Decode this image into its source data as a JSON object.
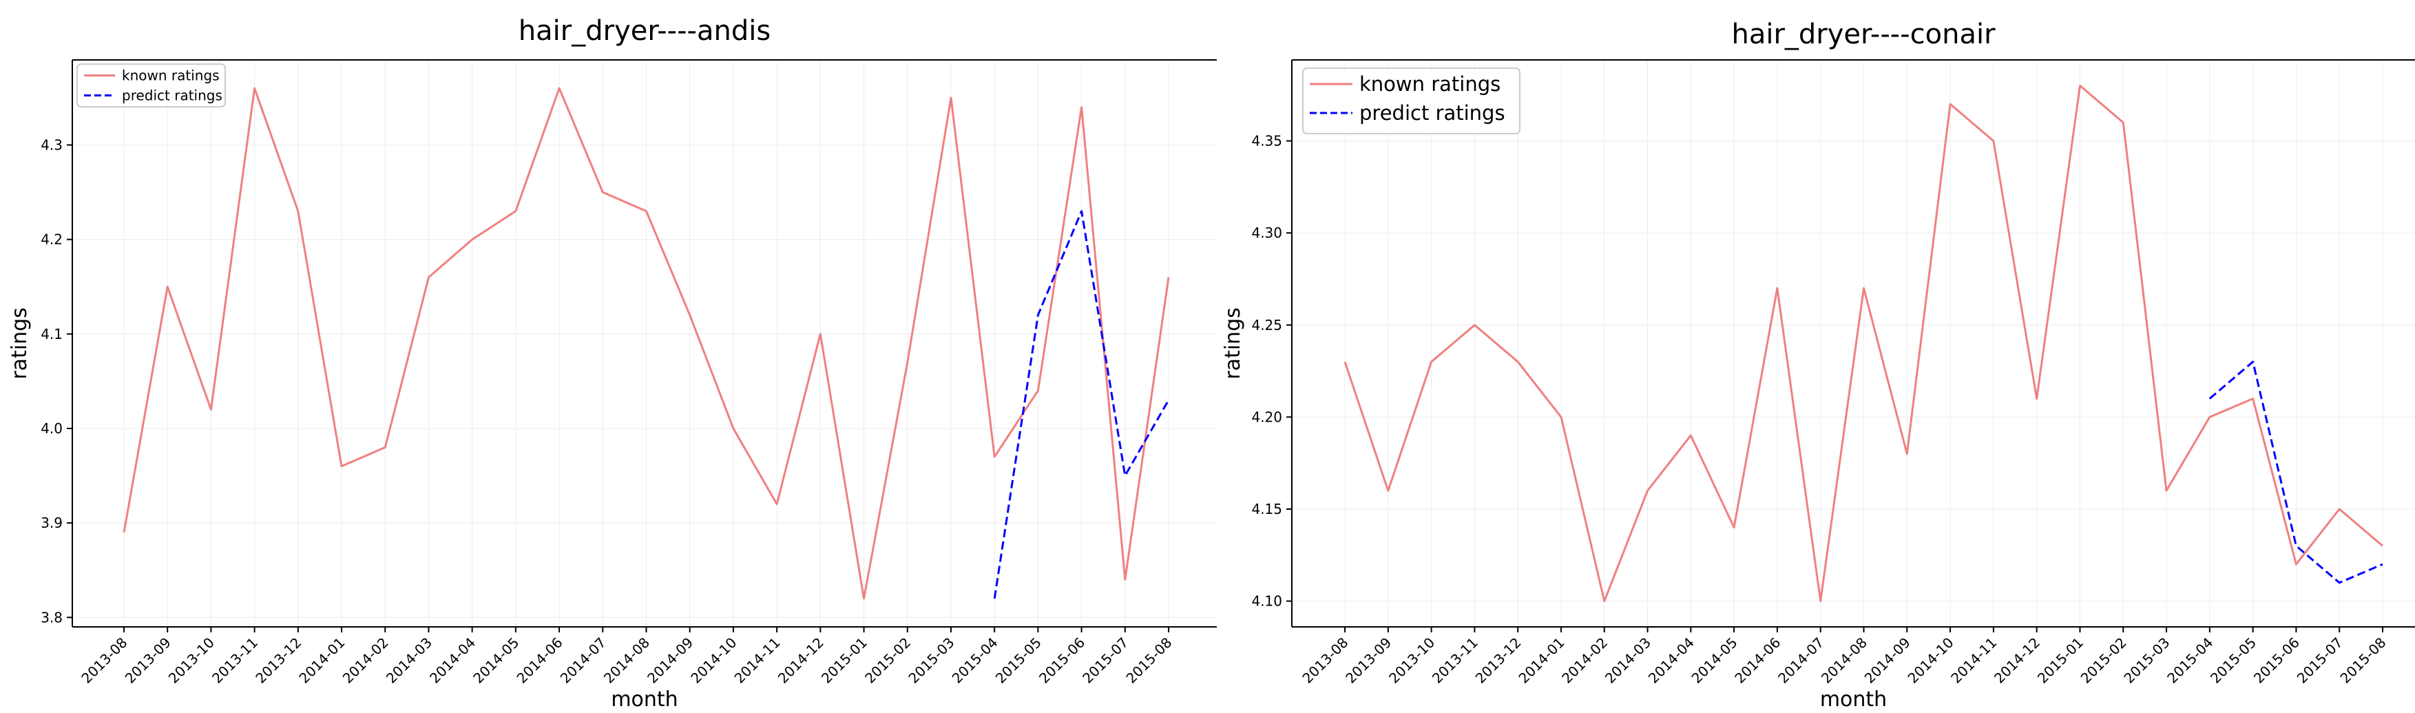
{
  "chart_data": [
    {
      "type": "line",
      "title": "hair_dryer----andis",
      "xlabel": "month",
      "ylabel": "ratings",
      "categories": [
        "2013-08",
        "2013-09",
        "2013-10",
        "2013-11",
        "2013-12",
        "2014-01",
        "2014-02",
        "2014-03",
        "2014-04",
        "2014-05",
        "2014-06",
        "2014-07",
        "2014-08",
        "2014-09",
        "2014-10",
        "2014-11",
        "2014-12",
        "2015-01",
        "2015-02",
        "2015-03",
        "2015-04",
        "2015-05",
        "2015-06",
        "2015-07",
        "2015-08"
      ],
      "ylim": [
        3.79,
        4.39
      ],
      "yticks": [
        3.8,
        3.9,
        4.0,
        4.1,
        4.2,
        4.3
      ],
      "ytick_labels": [
        "3.8",
        "3.9",
        "4.0",
        "4.1",
        "4.2",
        "4.3"
      ],
      "grid": true,
      "legend_position": "upper-left",
      "legend_size": "small",
      "series": [
        {
          "name": "known ratings",
          "color": "#f08080",
          "dash": "solid",
          "values": [
            3.89,
            4.15,
            4.02,
            4.36,
            4.23,
            3.96,
            3.98,
            4.16,
            4.2,
            4.23,
            4.36,
            4.25,
            4.23,
            4.12,
            4.0,
            3.92,
            4.1,
            3.82,
            4.07,
            4.35,
            3.97,
            4.04,
            4.34,
            3.84,
            4.16
          ]
        },
        {
          "name": "predict ratings",
          "color": "#0000ff",
          "dash": "dashed",
          "values": [
            null,
            null,
            null,
            null,
            null,
            null,
            null,
            null,
            null,
            null,
            null,
            null,
            null,
            null,
            null,
            null,
            null,
            null,
            null,
            null,
            3.82,
            4.12,
            4.23,
            3.95,
            4.03
          ]
        }
      ]
    },
    {
      "type": "line",
      "title": "hair_dryer----conair",
      "xlabel": "month",
      "ylabel": "ratings",
      "categories": [
        "2013-08",
        "2013-09",
        "2013-10",
        "2013-11",
        "2013-12",
        "2014-01",
        "2014-02",
        "2014-03",
        "2014-04",
        "2014-05",
        "2014-06",
        "2014-07",
        "2014-08",
        "2014-09",
        "2014-10",
        "2014-11",
        "2014-12",
        "2015-01",
        "2015-02",
        "2015-03",
        "2015-04",
        "2015-05",
        "2015-06",
        "2015-07",
        "2015-08"
      ],
      "ylim": [
        4.086,
        4.394
      ],
      "yticks": [
        4.1,
        4.15,
        4.2,
        4.25,
        4.3,
        4.35
      ],
      "ytick_labels": [
        "4.10",
        "4.15",
        "4.20",
        "4.25",
        "4.30",
        "4.35"
      ],
      "grid": true,
      "legend_position": "upper-left",
      "legend_size": "large",
      "series": [
        {
          "name": "known ratings",
          "color": "#f08080",
          "dash": "solid",
          "values": [
            4.23,
            4.16,
            4.23,
            4.25,
            4.23,
            4.2,
            4.1,
            4.16,
            4.19,
            4.14,
            4.27,
            4.1,
            4.27,
            4.18,
            4.37,
            4.35,
            4.21,
            4.38,
            4.36,
            4.16,
            4.2,
            4.21,
            4.12,
            4.15,
            4.13
          ]
        },
        {
          "name": "predict ratings",
          "color": "#0000ff",
          "dash": "dashed",
          "values": [
            null,
            null,
            null,
            null,
            null,
            null,
            null,
            null,
            null,
            null,
            null,
            null,
            null,
            null,
            null,
            null,
            null,
            null,
            null,
            null,
            4.21,
            4.23,
            4.13,
            4.11,
            4.12
          ]
        }
      ]
    }
  ]
}
